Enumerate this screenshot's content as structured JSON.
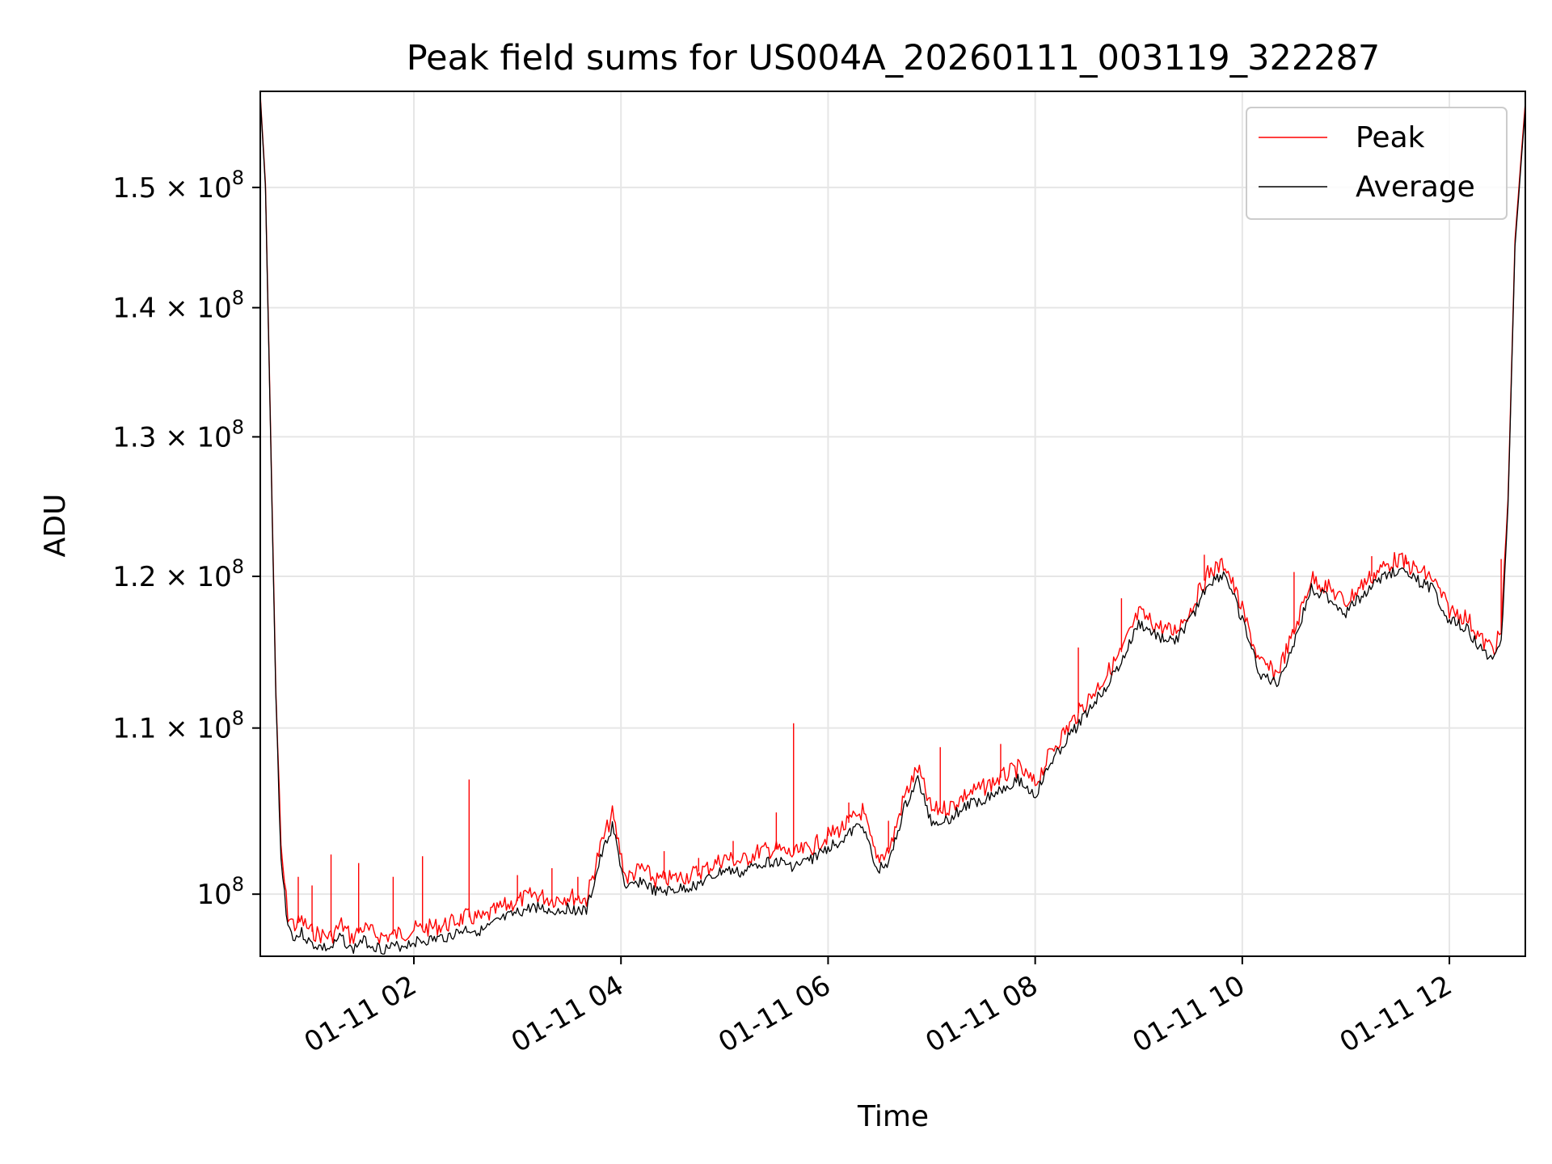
{
  "chart_data": {
    "type": "line",
    "title": "Peak field sums for US004A_20260111_003119_322287",
    "xlabel": "Time",
    "ylabel": "ADU",
    "xlim": [
      "2026-01-11 00:31",
      "2026-01-11 12:44"
    ],
    "ylim": [
      96500000,
      158500000
    ],
    "yscale": "log",
    "grid": true,
    "legend_position": "upper right",
    "x_ticks": [
      {
        "value": "2026-01-11 02:00",
        "label": "01-11 02"
      },
      {
        "value": "2026-01-11 04:00",
        "label": "01-11 04"
      },
      {
        "value": "2026-01-11 06:00",
        "label": "01-11 06"
      },
      {
        "value": "2026-01-11 08:00",
        "label": "01-11 08"
      },
      {
        "value": "2026-01-11 10:00",
        "label": "01-11 10"
      },
      {
        "value": "2026-01-11 12:00",
        "label": "01-11 12"
      }
    ],
    "y_ticks": [
      {
        "value": 100000000,
        "mantissa": "",
        "exponent": "8"
      },
      {
        "value": 110000000,
        "mantissa": "1.1",
        "exponent": "8"
      },
      {
        "value": 120000000,
        "mantissa": "1.2",
        "exponent": "8"
      },
      {
        "value": 130000000,
        "mantissa": "1.3",
        "exponent": "8"
      },
      {
        "value": 140000000,
        "mantissa": "1.4",
        "exponent": "8"
      },
      {
        "value": 150000000,
        "mantissa": "1.5",
        "exponent": "8"
      }
    ],
    "series": [
      {
        "name": "Average",
        "color": "#000000",
        "x": [
          "2026-01-11 00:31",
          "2026-01-11 00:34",
          "2026-01-11 00:37",
          "2026-01-11 00:40",
          "2026-01-11 00:43",
          "2026-01-11 00:47",
          "2026-01-11 00:51",
          "2026-01-11 00:55",
          "2026-01-11 01:00",
          "2026-01-11 01:06",
          "2026-01-11 01:12",
          "2026-01-11 01:18",
          "2026-01-11 01:24",
          "2026-01-11 01:30",
          "2026-01-11 01:36",
          "2026-01-11 01:42",
          "2026-01-11 01:48",
          "2026-01-11 01:54",
          "2026-01-11 02:00",
          "2026-01-11 02:10",
          "2026-01-11 02:20",
          "2026-01-11 02:30",
          "2026-01-11 02:40",
          "2026-01-11 02:50",
          "2026-01-11 03:00",
          "2026-01-11 03:10",
          "2026-01-11 03:20",
          "2026-01-11 03:30",
          "2026-01-11 03:40",
          "2026-01-11 03:48",
          "2026-01-11 03:55",
          "2026-01-11 04:03",
          "2026-01-11 04:12",
          "2026-01-11 04:20",
          "2026-01-11 04:30",
          "2026-01-11 04:40",
          "2026-01-11 04:50",
          "2026-01-11 05:00",
          "2026-01-11 05:10",
          "2026-01-11 05:20",
          "2026-01-11 05:30",
          "2026-01-11 05:40",
          "2026-01-11 05:50",
          "2026-01-11 06:00",
          "2026-01-11 06:10",
          "2026-01-11 06:20",
          "2026-01-11 06:28",
          "2026-01-11 06:36",
          "2026-01-11 06:44",
          "2026-01-11 06:52",
          "2026-01-11 07:00",
          "2026-01-11 07:10",
          "2026-01-11 07:20",
          "2026-01-11 07:30",
          "2026-01-11 07:40",
          "2026-01-11 07:50",
          "2026-01-11 08:00",
          "2026-01-11 08:10",
          "2026-01-11 08:20",
          "2026-01-11 08:30",
          "2026-01-11 08:40",
          "2026-01-11 08:50",
          "2026-01-11 09:00",
          "2026-01-11 09:10",
          "2026-01-11 09:20",
          "2026-01-11 09:30",
          "2026-01-11 09:40",
          "2026-01-11 09:50",
          "2026-01-11 10:00",
          "2026-01-11 10:10",
          "2026-01-11 10:20",
          "2026-01-11 10:30",
          "2026-01-11 10:40",
          "2026-01-11 10:50",
          "2026-01-11 11:00",
          "2026-01-11 11:10",
          "2026-01-11 11:20",
          "2026-01-11 11:30",
          "2026-01-11 11:40",
          "2026-01-11 11:50",
          "2026-01-11 12:00",
          "2026-01-11 12:10",
          "2026-01-11 12:20",
          "2026-01-11 12:26",
          "2026-01-11 12:30",
          "2026-01-11 12:34",
          "2026-01-11 12:38",
          "2026-01-11 12:42",
          "2026-01-11 12:44"
        ],
        "values": [
          158000000,
          150000000,
          130000000,
          112000000,
          102000000,
          98200000,
          97500000,
          97800000,
          97200000,
          97000000,
          96900000,
          97600000,
          96800000,
          97400000,
          97100000,
          96900000,
          97000000,
          97100000,
          97300000,
          97400000,
          97600000,
          98000000,
          97900000,
          98500000,
          98900000,
          99300000,
          99000000,
          99200000,
          99000000,
          102000000,
          104000000,
          100200000,
          100800000,
          100100000,
          100200000,
          100400000,
          100800000,
          101400000,
          101200000,
          101800000,
          101900000,
          101600000,
          102000000,
          102700000,
          103300000,
          104200000,
          101300000,
          102000000,
          105000000,
          106800000,
          104200000,
          104400000,
          105200000,
          105600000,
          106200000,
          106800000,
          105800000,
          108000000,
          109500000,
          111000000,
          112500000,
          114200000,
          116800000,
          116000000,
          115500000,
          117000000,
          119500000,
          120200000,
          117000000,
          113500000,
          112800000,
          115500000,
          119200000,
          118500000,
          117500000,
          118800000,
          119800000,
          120500000,
          119800000,
          119200000,
          117000000,
          116500000,
          114800000,
          114500000,
          115500000,
          125000000,
          145000000,
          153000000,
          157000000
        ]
      },
      {
        "name": "Peak",
        "color": "#ff0000",
        "x": [
          "2026-01-11 00:31",
          "2026-01-11 00:34",
          "2026-01-11 00:37",
          "2026-01-11 00:40",
          "2026-01-11 00:43",
          "2026-01-11 00:47",
          "2026-01-11 00:51",
          "2026-01-11 00:55",
          "2026-01-11 01:00",
          "2026-01-11 01:06",
          "2026-01-11 01:12",
          "2026-01-11 01:18",
          "2026-01-11 01:24",
          "2026-01-11 01:30",
          "2026-01-11 01:36",
          "2026-01-11 01:42",
          "2026-01-11 01:48",
          "2026-01-11 01:54",
          "2026-01-11 02:00",
          "2026-01-11 02:10",
          "2026-01-11 02:20",
          "2026-01-11 02:30",
          "2026-01-11 02:40",
          "2026-01-11 02:50",
          "2026-01-11 03:00",
          "2026-01-11 03:10",
          "2026-01-11 03:20",
          "2026-01-11 03:30",
          "2026-01-11 03:40",
          "2026-01-11 03:48",
          "2026-01-11 03:55",
          "2026-01-11 04:03",
          "2026-01-11 04:12",
          "2026-01-11 04:20",
          "2026-01-11 04:30",
          "2026-01-11 04:40",
          "2026-01-11 04:50",
          "2026-01-11 05:00",
          "2026-01-11 05:10",
          "2026-01-11 05:20",
          "2026-01-11 05:30",
          "2026-01-11 05:40",
          "2026-01-11 05:50",
          "2026-01-11 06:00",
          "2026-01-11 06:10",
          "2026-01-11 06:20",
          "2026-01-11 06:28",
          "2026-01-11 06:36",
          "2026-01-11 06:44",
          "2026-01-11 06:52",
          "2026-01-11 07:00",
          "2026-01-11 07:10",
          "2026-01-11 07:20",
          "2026-01-11 07:30",
          "2026-01-11 07:40",
          "2026-01-11 07:50",
          "2026-01-11 08:00",
          "2026-01-11 08:10",
          "2026-01-11 08:20",
          "2026-01-11 08:30",
          "2026-01-11 08:40",
          "2026-01-11 08:50",
          "2026-01-11 09:00",
          "2026-01-11 09:10",
          "2026-01-11 09:20",
          "2026-01-11 09:30",
          "2026-01-11 09:40",
          "2026-01-11 09:50",
          "2026-01-11 10:00",
          "2026-01-11 10:10",
          "2026-01-11 10:20",
          "2026-01-11 10:30",
          "2026-01-11 10:40",
          "2026-01-11 10:50",
          "2026-01-11 11:00",
          "2026-01-11 11:10",
          "2026-01-11 11:20",
          "2026-01-11 11:30",
          "2026-01-11 11:40",
          "2026-01-11 11:50",
          "2026-01-11 12:00",
          "2026-01-11 12:10",
          "2026-01-11 12:20",
          "2026-01-11 12:26",
          "2026-01-11 12:30",
          "2026-01-11 12:34",
          "2026-01-11 12:38",
          "2026-01-11 12:42",
          "2026-01-11 12:44"
        ],
        "values": [
          158200000,
          150300000,
          130400000,
          112500000,
          102600000,
          98800000,
          98200000,
          98500000,
          97900000,
          97700000,
          97600000,
          98300000,
          97500000,
          98100000,
          97800000,
          97600000,
          97700000,
          97800000,
          98000000,
          98100000,
          98300000,
          98700000,
          98600000,
          99200000,
          99600000,
          100000000,
          99700000,
          99900000,
          99700000,
          102700000,
          104700000,
          100900000,
          101500000,
          100800000,
          100900000,
          101100000,
          101500000,
          102100000,
          101900000,
          102500000,
          102600000,
          102300000,
          102700000,
          103400000,
          104000000,
          104900000,
          102000000,
          102700000,
          105700000,
          107500000,
          104900000,
          105100000,
          105900000,
          106300000,
          106900000,
          107500000,
          106500000,
          108700000,
          110200000,
          111700000,
          113200000,
          114900000,
          117500000,
          116700000,
          116200000,
          117700000,
          120200000,
          120900000,
          117700000,
          114200000,
          113500000,
          116200000,
          119900000,
          119200000,
          118200000,
          119500000,
          120500000,
          121200000,
          120500000,
          119900000,
          117700000,
          117200000,
          115500000,
          115200000,
          116200000,
          125500000,
          145500000,
          153500000,
          157500000
        ]
      }
    ],
    "spikes": [
      {
        "x": "2026-01-11 00:53",
        "value": 101000000
      },
      {
        "x": "2026-01-11 01:01",
        "value": 100500000
      },
      {
        "x": "2026-01-11 01:12",
        "value": 102300000
      },
      {
        "x": "2026-01-11 01:28",
        "value": 101800000
      },
      {
        "x": "2026-01-11 01:48",
        "value": 101000000
      },
      {
        "x": "2026-01-11 02:05",
        "value": 102200000
      },
      {
        "x": "2026-01-11 02:32",
        "value": 106800000
      },
      {
        "x": "2026-01-11 03:00",
        "value": 101100000
      },
      {
        "x": "2026-01-11 03:20",
        "value": 101500000
      },
      {
        "x": "2026-01-11 03:35",
        "value": 101000000
      },
      {
        "x": "2026-01-11 04:25",
        "value": 102500000
      },
      {
        "x": "2026-01-11 04:45",
        "value": 102100000
      },
      {
        "x": "2026-01-11 05:05",
        "value": 103100000
      },
      {
        "x": "2026-01-11 05:30",
        "value": 104800000
      },
      {
        "x": "2026-01-11 05:40",
        "value": 110300000
      },
      {
        "x": "2026-01-11 06:00",
        "value": 103700000
      },
      {
        "x": "2026-01-11 06:12",
        "value": 105400000
      },
      {
        "x": "2026-01-11 06:35",
        "value": 104300000
      },
      {
        "x": "2026-01-11 07:05",
        "value": 108800000
      },
      {
        "x": "2026-01-11 07:40",
        "value": 109000000
      },
      {
        "x": "2026-01-11 08:25",
        "value": 115200000
      },
      {
        "x": "2026-01-11 08:50",
        "value": 118500000
      },
      {
        "x": "2026-01-11 09:38",
        "value": 121500000
      },
      {
        "x": "2026-01-11 10:30",
        "value": 120300000
      },
      {
        "x": "2026-01-11 11:15",
        "value": 121400000
      },
      {
        "x": "2026-01-11 11:35",
        "value": 121300000
      },
      {
        "x": "2026-01-11 12:30",
        "value": 121200000
      }
    ]
  }
}
